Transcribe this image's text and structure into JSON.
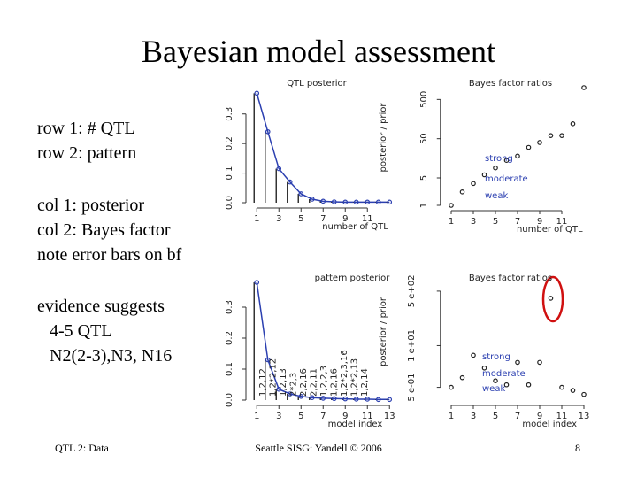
{
  "slide": {
    "title": "Bayesian model assessment",
    "notes": [
      "row 1: # QTL",
      "row 2: pattern",
      "col 1: posterior",
      "col 2: Bayes factor",
      "note error bars on bf",
      "evidence suggests",
      "4-5 QTL",
      "N2(2-3),N3, N16"
    ],
    "footer": {
      "left": "QTL 2: Data",
      "center": "Seattle SISG: Yandell © 2006",
      "page": 8
    }
  },
  "chart_data": [
    {
      "type": "line",
      "title": "QTL posterior",
      "x_label": "number of QTL",
      "color": "#2b3fb0",
      "x": [
        1,
        2,
        3,
        4,
        5,
        6,
        7,
        8,
        9,
        10,
        11,
        12,
        13
      ],
      "values": [
        0.37,
        0.24,
        0.115,
        0.07,
        0.03,
        0.012,
        0.005,
        0.003,
        0.002,
        0.002,
        0.002,
        0.002,
        0.002
      ],
      "xlim": [
        0.5,
        13.5
      ],
      "ylim": [
        0,
        0.38
      ],
      "xticks": [
        1,
        3,
        5,
        7,
        9,
        11
      ],
      "yticks": [
        {
          "value": 0,
          "label": "0.0"
        },
        {
          "value": 0.1,
          "label": "0.1"
        },
        {
          "value": 0.2,
          "label": "0.2"
        },
        {
          "value": 0.3,
          "label": "0.3"
        }
      ]
    },
    {
      "type": "scatter",
      "title": "Bayes factor ratios",
      "x_label": "number of QTL",
      "y_label": "posterior / prior",
      "log_y": true,
      "color": "#222222",
      "x": [
        1,
        2,
        3,
        4,
        5,
        6,
        7,
        8,
        9,
        10,
        11,
        12,
        13
      ],
      "values": [
        1,
        2.2,
        3.6,
        6,
        9,
        14,
        18,
        30,
        40,
        60,
        60,
        120,
        1000
      ],
      "xlim": [
        0.5,
        13.5
      ],
      "ylim": [
        1,
        1000
      ],
      "xticks": [
        1,
        3,
        5,
        7,
        9,
        11
      ],
      "yticks": [
        1,
        5,
        50,
        500
      ],
      "annotations": [
        "strong",
        "moderate",
        "weak"
      ]
    },
    {
      "type": "line",
      "title": "pattern posterior",
      "x_label": "model index",
      "color": "#2b3fb0",
      "x": [
        1,
        2,
        3,
        4,
        5,
        6,
        7,
        8,
        9,
        10,
        11,
        12,
        13
      ],
      "values": [
        0.38,
        0.13,
        0.035,
        0.02,
        0.012,
        0.008,
        0.006,
        0.005,
        0.004,
        0.003,
        0.003,
        0.002,
        0.002
      ],
      "xlim": [
        0.5,
        13.5
      ],
      "ylim": [
        0,
        0.38
      ],
      "xticks": [
        1,
        3,
        5,
        7,
        9,
        11,
        13
      ],
      "yticks": [
        {
          "value": 0,
          "label": "0.0"
        },
        {
          "value": 0.1,
          "label": "0.1"
        },
        {
          "value": 0.2,
          "label": "0.2"
        },
        {
          "value": 0.3,
          "label": "0.3"
        }
      ],
      "patterns": [
        "1,2,12",
        "1,2*2,12",
        "1,2,13",
        "2*2,3",
        "2,2,16",
        "2,2,11",
        "1,2,2,3",
        "1,2,16",
        "1,2*2,3,16",
        "1,2*2,13",
        "1,2,14"
      ]
    },
    {
      "type": "scatter",
      "title": "Bayes factor ratios",
      "x_label": "model index",
      "y_label": "posterior / prior",
      "log_y": true,
      "color": "#222222",
      "x": [
        1,
        2,
        3,
        4,
        5,
        6,
        7,
        8,
        9,
        10,
        11,
        12,
        13
      ],
      "values": [
        0.5,
        1,
        5,
        2,
        0.8,
        0.6,
        3,
        0.6,
        3,
        300,
        0.5,
        0.4,
        0.3
      ],
      "xlim": [
        0.5,
        13.5
      ],
      "ylim": [
        0.2,
        1000
      ],
      "xticks": [
        1,
        3,
        5,
        7,
        9,
        11,
        13
      ],
      "yticks": [
        {
          "value": 0.5,
          "label": "5 e-01"
        },
        {
          "value": 10,
          "label": "1 e+01"
        },
        {
          "value": 500,
          "label": "5 e+02"
        }
      ],
      "annotations": [
        "strong",
        "moderate",
        "weak"
      ]
    }
  ]
}
